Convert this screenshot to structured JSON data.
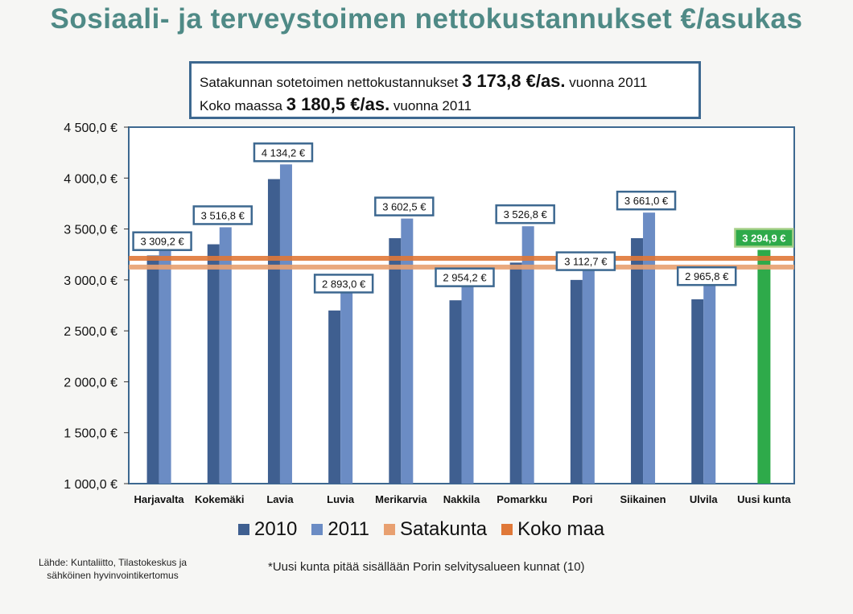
{
  "title": "Sosiaali- ja terveystoimen nettokustannukset €/asukas",
  "infobox": {
    "line1_prefix": "Satakunnan sotetoimen nettokustannukset",
    "line1_value": "3 173,8 €/as.",
    "line1_suffix": "vuonna 2011",
    "line2_prefix": "Koko maassa",
    "line2_value": "3 180,5 €/as.",
    "line2_suffix": "vuonna 2011"
  },
  "chart_data": {
    "type": "bar",
    "categories": [
      "Harjavalta",
      "Kokemäki",
      "Lavia",
      "Luvia",
      "Merikarvia",
      "Nakkila",
      "Pomarkku",
      "Pori",
      "Siikainen",
      "Ulvila",
      "Uusi kunta"
    ],
    "series": [
      {
        "name": "2010",
        "values": [
          3240,
          3350,
          3990,
          2700,
          3410,
          2800,
          3170,
          3000,
          3410,
          2810,
          null
        ],
        "color": "#3f5f90"
      },
      {
        "name": "2011",
        "values": [
          3309.2,
          3516.8,
          4134.2,
          2893.0,
          3602.5,
          2954.2,
          3526.8,
          3112.7,
          3661.0,
          2965.8,
          3294.9
        ],
        "color": "#6b8cc4"
      }
    ],
    "data_labels": [
      "3 309,2 €",
      "3 516,8 €",
      "4 134,2 €",
      "2 893,0 €",
      "3 602,5 €",
      "2 954,2 €",
      "3 526,8 €",
      "3 112,7 €",
      "3 661,0 €",
      "2 965,8 €",
      "3 294,9 €"
    ],
    "highlight": {
      "category": "Uusi kunta",
      "color": "#2eaa4a"
    },
    "reference_lines": [
      {
        "name": "Satakunta",
        "value": 3173.8,
        "color": "#e8a070"
      },
      {
        "name": "Koko maa",
        "value": 3180.5,
        "color": "#e07838"
      }
    ],
    "ylim": [
      1000,
      4500
    ],
    "yticks": [
      1000,
      1500,
      2000,
      2500,
      3000,
      3500,
      4000,
      4500
    ],
    "ytick_labels": [
      "1 000,0 €",
      "1 500,0 €",
      "2 000,0 €",
      "2 500,0 €",
      "3 000,0 €",
      "3 500,0 €",
      "4 000,0 €",
      "4 500,0 €"
    ],
    "legend": [
      "2010",
      "2011",
      "Satakunta",
      "Koko maa"
    ],
    "legend_position": "bottom"
  },
  "source": "Lähde: Kuntaliitto, Tilastokeskus ja sähköinen hyvinvointikertomus",
  "footnote": "*Uusi kunta pitää sisällään Porin selvitysalueen kunnat (10)"
}
